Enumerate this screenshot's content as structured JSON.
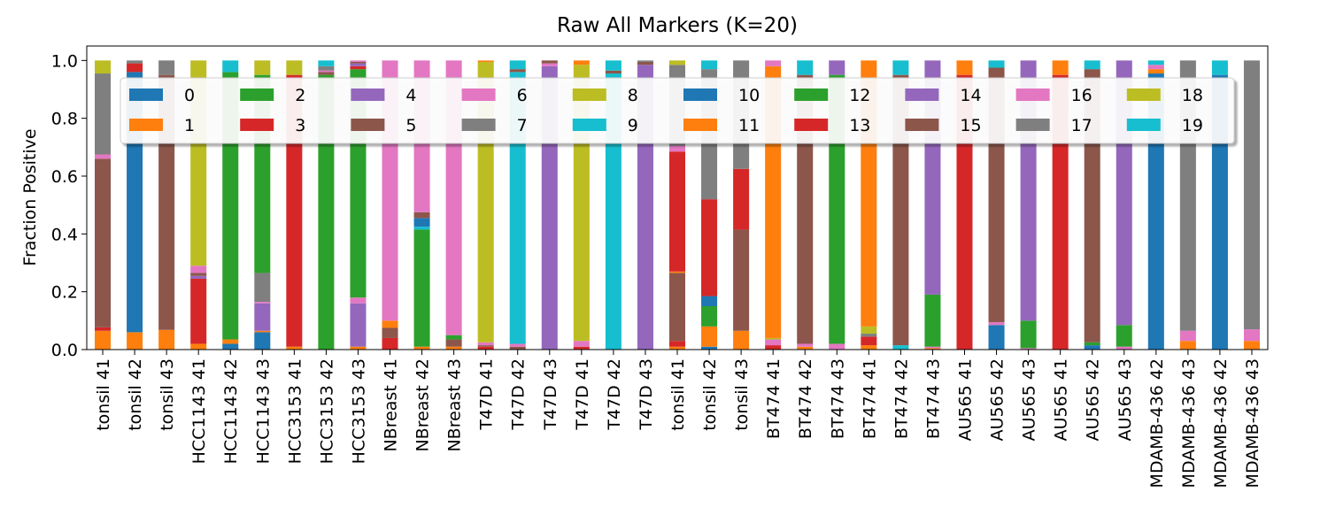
{
  "chart_data": {
    "type": "stacked_bar",
    "title": "Raw All Markers (K=20)",
    "y_label": "Fraction Positive",
    "categories": [
      "tonsil 41",
      "tonsil 42",
      "tonsil 43",
      "HCC1143 41",
      "HCC1143 42",
      "HCC1143 43",
      "HCC3153 41",
      "HCC3153 42",
      "HCC3153 43",
      "NBreast 41",
      "NBreast 42",
      "NBreast 43",
      "T47D 41",
      "T47D 42",
      "T47D 43",
      "T47D 41",
      "T47D 42",
      "T47D 43",
      "tonsil 41",
      "tonsil 42",
      "tonsil 43",
      "BT474 41",
      "BT474 42",
      "BT474 43",
      "BT474 41",
      "BT474 42",
      "BT474 43",
      "AU565 41",
      "AU565 42",
      "AU565 43",
      "AU565 41",
      "AU565 42",
      "AU565 43",
      "MDAMB-436 42",
      "MDAMB-436 43",
      "MDAMB-436 42",
      "MDAMB-436 43"
    ],
    "ylim": [
      0,
      1.05
    ],
    "yticks": [
      {
        "value": 0,
        "label": "0.0"
      },
      {
        "value": 0.2,
        "label": "0.2"
      },
      {
        "value": 0.4,
        "label": "0.4"
      },
      {
        "value": 0.6,
        "label": "0.6"
      },
      {
        "value": 0.8,
        "label": "0.8"
      },
      {
        "value": 1,
        "label": "1.0"
      }
    ],
    "legend": "upper center",
    "legend_columns": 10,
    "series": [
      {
        "name": "0",
        "color": "#1f77b4",
        "values": [
          0,
          0,
          0,
          0,
          0.02,
          0.06,
          0,
          0,
          0,
          0,
          0,
          0,
          0,
          0,
          0,
          0,
          0,
          0,
          0,
          0.01,
          0,
          0,
          0,
          0,
          0,
          0,
          0,
          0,
          0.085,
          0,
          0,
          0.015,
          0,
          0,
          0,
          0,
          0
        ]
      },
      {
        "name": "1",
        "color": "#ff7f0e",
        "values": [
          0.065,
          0.06,
          0.068,
          0.02,
          0.015,
          0.005,
          0.01,
          0,
          0.01,
          0,
          0.01,
          0.01,
          0,
          0,
          0,
          0,
          0,
          0,
          0.01,
          0.07,
          0.065,
          0,
          0.01,
          0,
          0.015,
          0,
          0.005,
          0,
          0,
          0,
          0,
          0,
          0,
          0,
          0.03,
          0,
          0.03
        ]
      },
      {
        "name": "2",
        "color": "#2ca02c",
        "values": [
          0,
          0,
          0,
          0,
          0.925,
          0,
          0,
          0.95,
          0,
          0,
          0.405,
          0,
          0,
          0,
          0,
          0,
          0,
          0,
          0,
          0.07,
          0,
          0,
          0,
          0,
          0,
          0,
          0,
          0,
          0,
          0,
          0,
          0.01,
          0,
          0,
          0,
          0,
          0
        ]
      },
      {
        "name": "3",
        "color": "#d62728",
        "values": [
          0.012,
          0,
          0,
          0.225,
          0,
          0,
          0.94,
          0,
          0,
          0.04,
          0,
          0,
          0.01,
          0,
          0,
          0.01,
          0,
          0,
          0.02,
          0,
          0,
          0.015,
          0,
          0,
          0.03,
          0,
          0,
          0.95,
          0,
          0,
          0.95,
          0,
          0,
          0,
          0,
          0,
          0
        ]
      },
      {
        "name": "4",
        "color": "#9467bd",
        "values": [
          0,
          0,
          0,
          0.01,
          0,
          0.095,
          0,
          0,
          0.15,
          0,
          0,
          0,
          0,
          0,
          0.98,
          0,
          0,
          0.985,
          0,
          0,
          0,
          0,
          0,
          0,
          0,
          0,
          0,
          0,
          0,
          0,
          0,
          0,
          0,
          0,
          0,
          0,
          0
        ]
      },
      {
        "name": "5",
        "color": "#8c564b",
        "values": [
          0.583,
          0,
          0.882,
          0.01,
          0,
          0,
          0,
          0.01,
          0,
          0.035,
          0,
          0.025,
          0.005,
          0.01,
          0,
          0,
          0,
          0,
          0.235,
          0,
          0.35,
          0,
          0,
          0,
          0,
          0,
          0,
          0,
          0,
          0,
          0,
          0,
          0,
          0,
          0,
          0,
          0
        ]
      },
      {
        "name": "6",
        "color": "#e377c2",
        "values": [
          0.015,
          0,
          0,
          0.025,
          0,
          0.005,
          0,
          0.005,
          0.02,
          0,
          0,
          0,
          0.01,
          0.01,
          0.01,
          0.02,
          0,
          0,
          0,
          0,
          0,
          0.02,
          0.01,
          0.02,
          0,
          0,
          0.005,
          0,
          0.01,
          0.005,
          0,
          0,
          0.01,
          0,
          0.035,
          0,
          0.04
        ]
      },
      {
        "name": "7",
        "color": "#7f7f7f",
        "values": [
          0.28,
          0,
          0.05,
          0,
          0,
          0.1,
          0,
          0.015,
          0,
          0,
          0,
          0,
          0,
          0,
          0,
          0,
          0,
          0,
          0,
          0,
          0,
          0,
          0,
          0,
          0.01,
          0,
          0,
          0,
          0,
          0,
          0,
          0,
          0,
          0,
          0,
          0,
          0
        ]
      },
      {
        "name": "8",
        "color": "#bcbd22",
        "values": [
          0.045,
          0,
          0,
          0.71,
          0,
          0,
          0.05,
          0,
          0,
          0,
          0,
          0,
          0.97,
          0,
          0,
          0.955,
          0,
          0,
          0,
          0,
          0,
          0.005,
          0,
          0,
          0.025,
          0,
          0,
          0,
          0,
          0,
          0,
          0,
          0,
          0,
          0,
          0,
          0
        ]
      },
      {
        "name": "9",
        "color": "#17becf",
        "values": [
          0,
          0,
          0,
          0,
          0.04,
          0,
          0,
          0.02,
          0,
          0,
          0.01,
          0,
          0,
          0.94,
          0,
          0,
          0.955,
          0,
          0,
          0,
          0,
          0,
          0,
          0,
          0,
          0.015,
          0,
          0,
          0,
          0,
          0,
          0,
          0,
          0,
          0,
          0,
          0
        ]
      },
      {
        "name": "10",
        "color": "#1f77b4",
        "values": [
          0,
          0.9,
          0,
          0,
          0,
          0,
          0,
          0,
          0,
          0,
          0.03,
          0,
          0,
          0,
          0,
          0,
          0,
          0,
          0,
          0.035,
          0,
          0,
          0,
          0,
          0,
          0,
          0,
          0,
          0,
          0,
          0,
          0,
          0,
          0.955,
          0,
          0.95,
          0
        ]
      },
      {
        "name": "11",
        "color": "#ff7f0e",
        "values": [
          0,
          0,
          0,
          0,
          0,
          0,
          0,
          0,
          0,
          0.025,
          0,
          0,
          0.005,
          0,
          0,
          0.015,
          0,
          0,
          0.005,
          0,
          0,
          0.94,
          0,
          0,
          0.92,
          0,
          0,
          0.05,
          0,
          0,
          0.05,
          0,
          0,
          0.015,
          0,
          0,
          0
        ]
      },
      {
        "name": "12",
        "color": "#2ca02c",
        "values": [
          0,
          0,
          0,
          0,
          0,
          0.685,
          0,
          0,
          0.79,
          0,
          0,
          0.015,
          0,
          0,
          0,
          0,
          0,
          0,
          0,
          0,
          0,
          0,
          0,
          0.93,
          0,
          0,
          0.18,
          0,
          0,
          0.095,
          0,
          0,
          0.075,
          0,
          0,
          0,
          0
        ]
      },
      {
        "name": "13",
        "color": "#d62728",
        "values": [
          0,
          0.03,
          0,
          0,
          0,
          0,
          0,
          0,
          0.01,
          0,
          0,
          0,
          0,
          0,
          0,
          0,
          0,
          0,
          0.415,
          0.335,
          0.21,
          0,
          0,
          0,
          0,
          0,
          0,
          0,
          0,
          0,
          0,
          0,
          0,
          0,
          0,
          0,
          0
        ]
      },
      {
        "name": "14",
        "color": "#9467bd",
        "values": [
          0,
          0,
          0,
          0,
          0,
          0,
          0,
          0,
          0.01,
          0,
          0,
          0,
          0,
          0,
          0,
          0,
          0,
          0,
          0,
          0,
          0,
          0,
          0,
          0.05,
          0,
          0,
          0.81,
          0,
          0,
          0.9,
          0,
          0,
          0.915,
          0,
          0,
          0,
          0
        ]
      },
      {
        "name": "15",
        "color": "#8c564b",
        "values": [
          0,
          0,
          0,
          0,
          0,
          0,
          0,
          0,
          0.005,
          0,
          0.02,
          0,
          0,
          0.01,
          0.01,
          0,
          0.01,
          0.01,
          0,
          0,
          0,
          0,
          0.93,
          0,
          0,
          0.935,
          0,
          0,
          0.88,
          0,
          0,
          0.945,
          0,
          0,
          0,
          0,
          0
        ]
      },
      {
        "name": "16",
        "color": "#e377c2",
        "values": [
          0,
          0,
          0,
          0,
          0,
          0,
          0,
          0,
          0.005,
          0.9,
          0.525,
          0.95,
          0,
          0,
          0,
          0,
          0,
          0,
          0.02,
          0,
          0,
          0.02,
          0,
          0,
          0,
          0,
          0,
          0,
          0,
          0,
          0,
          0,
          0,
          0.015,
          0,
          0,
          0
        ]
      },
      {
        "name": "17",
        "color": "#7f7f7f",
        "values": [
          0,
          0.01,
          0,
          0,
          0,
          0,
          0,
          0,
          0,
          0,
          0,
          0,
          0,
          0,
          0,
          0,
          0,
          0.005,
          0.28,
          0.45,
          0.375,
          0,
          0,
          0,
          0,
          0,
          0,
          0,
          0,
          0,
          0,
          0,
          0,
          0,
          0.935,
          0,
          0.93
        ]
      },
      {
        "name": "18",
        "color": "#bcbd22",
        "values": [
          0,
          0,
          0,
          0,
          0,
          0.05,
          0,
          0,
          0,
          0,
          0,
          0,
          0,
          0,
          0,
          0,
          0,
          0,
          0.015,
          0,
          0,
          0,
          0,
          0,
          0,
          0,
          0,
          0,
          0,
          0,
          0,
          0,
          0,
          0,
          0,
          0,
          0
        ]
      },
      {
        "name": "19",
        "color": "#17becf",
        "values": [
          0,
          0,
          0,
          0,
          0,
          0,
          0,
          0,
          0,
          0,
          0,
          0,
          0,
          0.03,
          0,
          0,
          0.035,
          0,
          0,
          0.03,
          0,
          0,
          0.05,
          0,
          0,
          0.05,
          0,
          0,
          0.025,
          0,
          0,
          0.03,
          0,
          0.015,
          0,
          0.05,
          0
        ]
      }
    ]
  }
}
